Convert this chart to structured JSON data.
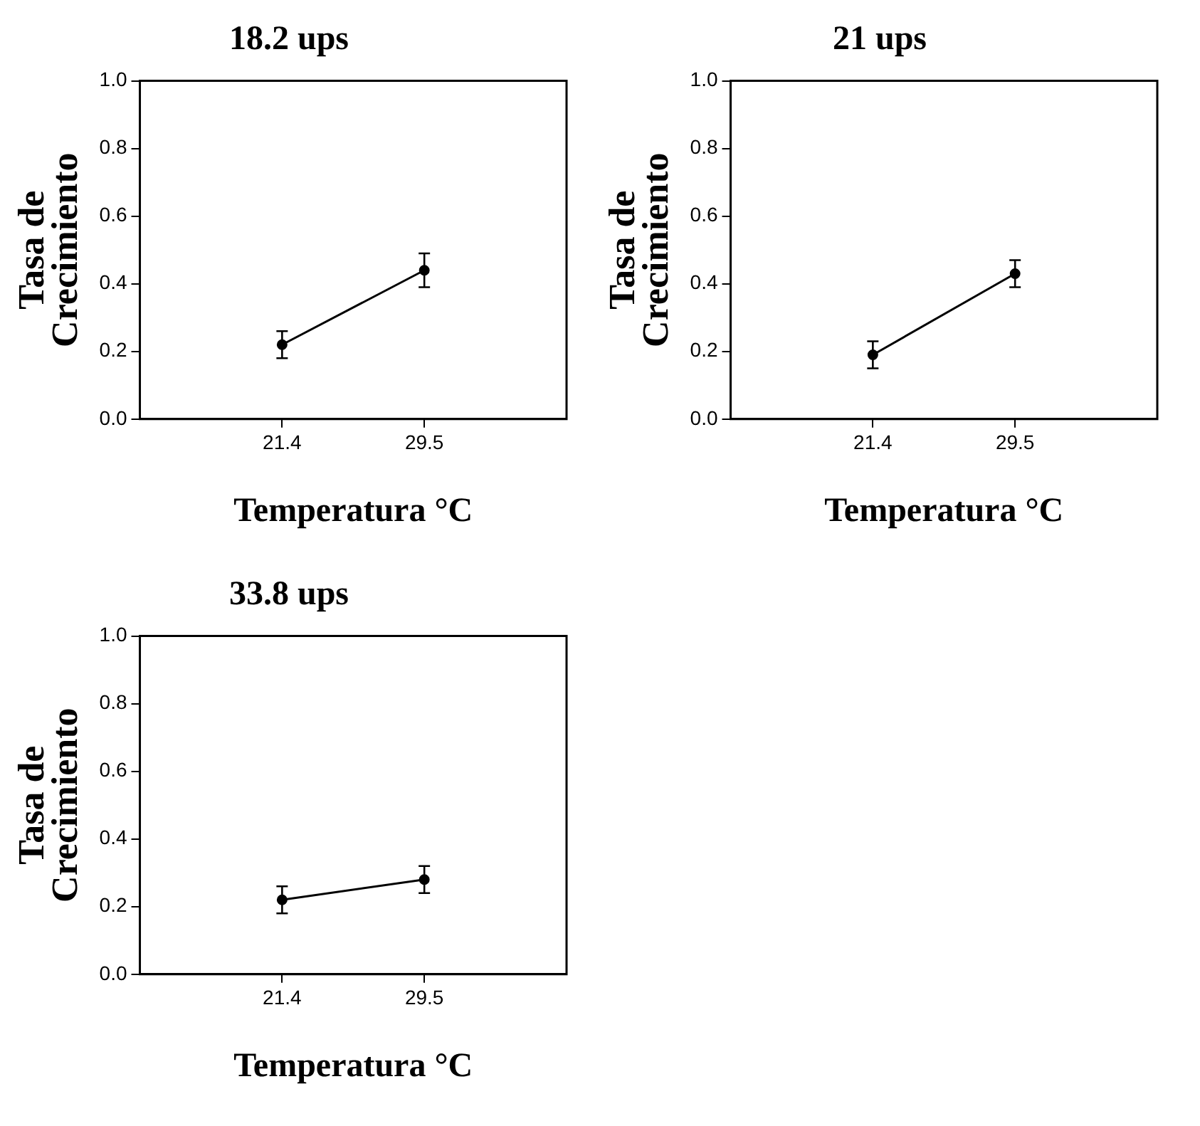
{
  "chart_data": [
    {
      "type": "line",
      "title": "18.2 ups",
      "xlabel": "Temperatura °C",
      "ylabel": "Tasa de\nCrecimiento",
      "categories": [
        null,
        "21.4",
        "29.5",
        null
      ],
      "values": [
        null,
        0.22,
        0.44,
        null
      ],
      "errors": [
        null,
        0.04,
        0.05,
        null
      ],
      "color": "#000000",
      "marker": "circle",
      "ylim": [
        0,
        1
      ],
      "yticks": [
        {
          "value": 0,
          "label": "0.0"
        },
        {
          "value": 0.2,
          "label": "0.2"
        },
        {
          "value": 0.4,
          "label": "0.4"
        },
        {
          "value": 0.6,
          "label": "0.6"
        },
        {
          "value": 0.8,
          "label": "0.8"
        },
        {
          "value": 1,
          "label": "1.0"
        }
      ]
    },
    {
      "type": "line",
      "title": "21 ups",
      "xlabel": "Temperatura °C",
      "ylabel": "Tasa de\nCrecimiento",
      "categories": [
        null,
        "21.4",
        "29.5",
        null
      ],
      "values": [
        null,
        0.19,
        0.43,
        null
      ],
      "errors": [
        null,
        0.04,
        0.04,
        null
      ],
      "color": "#000000",
      "marker": "circle",
      "ylim": [
        0,
        1
      ],
      "yticks": [
        {
          "value": 0,
          "label": "0.0"
        },
        {
          "value": 0.2,
          "label": "0.2"
        },
        {
          "value": 0.4,
          "label": "0.4"
        },
        {
          "value": 0.6,
          "label": "0.6"
        },
        {
          "value": 0.8,
          "label": "0.8"
        },
        {
          "value": 1,
          "label": "1.0"
        }
      ]
    },
    {
      "type": "line",
      "title": "33.8 ups",
      "xlabel": "Temperatura °C",
      "ylabel": "Tasa de\nCrecimiento",
      "categories": [
        null,
        "21.4",
        "29.5",
        null
      ],
      "values": [
        null,
        0.22,
        0.28,
        null
      ],
      "errors": [
        null,
        0.04,
        0.04,
        null
      ],
      "color": "#000000",
      "marker": "circle",
      "ylim": [
        0,
        1
      ],
      "yticks": [
        {
          "value": 0,
          "label": "0.0"
        },
        {
          "value": 0.2,
          "label": "0.2"
        },
        {
          "value": 0.4,
          "label": "0.4"
        },
        {
          "value": 0.6,
          "label": "0.6"
        },
        {
          "value": 0.8,
          "label": "0.8"
        },
        {
          "value": 1,
          "label": "1.0"
        }
      ]
    }
  ]
}
